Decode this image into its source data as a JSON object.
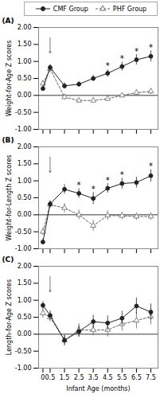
{
  "chart_data": [
    {
      "type": "line",
      "title": "(A)",
      "ylabel": "Weight-for-Age Z scores",
      "x": [
        0,
        0.5,
        1.5,
        2.5,
        3.5,
        4.5,
        5.5,
        6.5,
        7.5
      ],
      "series": [
        {
          "name": "CMF Group",
          "color": "#222222",
          "marker": "circle",
          "line_style": "solid",
          "values": [
            0.2,
            0.82,
            0.28,
            0.33,
            0.5,
            0.65,
            0.85,
            1.05,
            1.15
          ],
          "errors": [
            0.07,
            0.09,
            0.09,
            0.08,
            0.09,
            0.11,
            0.13,
            0.15,
            0.16
          ]
        },
        {
          "name": "PHF Group",
          "color": "#666666",
          "marker": "triangle_open",
          "line_style": "dashed",
          "values": [
            0.35,
            0.78,
            -0.05,
            -0.15,
            -0.15,
            -0.1,
            0.0,
            0.08,
            0.12
          ],
          "errors": [
            0.09,
            0.11,
            0.09,
            0.07,
            0.07,
            0.07,
            0.07,
            0.09,
            0.09
          ]
        }
      ],
      "xlim": [
        -0.3,
        8.0
      ],
      "xticks": [
        0,
        0.5,
        1.5,
        2.5,
        3.5,
        4.5,
        5.5,
        6.5,
        7.5
      ],
      "ylim": [
        -1.0,
        2.0
      ],
      "yticks": [
        {
          "value": -1.0,
          "label": "-1.00"
        },
        {
          "value": -0.5,
          "label": "-0.50"
        },
        {
          "value": 0.0,
          "label": "0.00"
        },
        {
          "value": 0.5,
          "label": "0.50"
        },
        {
          "value": 1.0,
          "label": "1.00"
        },
        {
          "value": 1.5,
          "label": "1.50"
        },
        {
          "value": 2.0,
          "label": "2.00"
        }
      ],
      "hlines": [
        0
      ],
      "arrow_x": 0.5,
      "annotations": [
        {
          "text": "*",
          "x": 4.5,
          "series": "CMF Group"
        },
        {
          "text": "*",
          "x": 5.5,
          "series": "CMF Group"
        },
        {
          "text": "*",
          "x": 6.5,
          "series": "CMF Group"
        },
        {
          "text": "*",
          "x": 7.5,
          "series": "CMF Group"
        }
      ],
      "tick_labels": "y",
      "grid": false,
      "legend": "top"
    },
    {
      "type": "line",
      "title": "(B)",
      "ylabel": "Weight-for-Length Z scores",
      "x": [
        0,
        0.5,
        1.5,
        2.5,
        3.5,
        4.5,
        5.5,
        6.5,
        7.5
      ],
      "series": [
        {
          "name": "CMF Group",
          "color": "#222222",
          "marker": "circle",
          "line_style": "solid",
          "values": [
            -0.8,
            0.32,
            0.75,
            0.63,
            0.48,
            0.78,
            0.92,
            0.95,
            1.15
          ],
          "errors": [
            0.09,
            0.09,
            0.14,
            0.14,
            0.18,
            0.14,
            0.16,
            0.16,
            0.18
          ]
        },
        {
          "name": "PHF Group",
          "color": "#666666",
          "marker": "triangle_open",
          "line_style": "dashed",
          "values": [
            -0.5,
            0.3,
            0.2,
            0.0,
            -0.32,
            -0.02,
            -0.03,
            -0.05,
            -0.05
          ],
          "errors": [
            0.11,
            0.11,
            0.14,
            0.14,
            0.16,
            0.14,
            0.11,
            0.11,
            0.11
          ]
        }
      ],
      "xlim": [
        -0.3,
        8.0
      ],
      "xticks": [
        0,
        0.5,
        1.5,
        2.5,
        3.5,
        4.5,
        5.5,
        6.5,
        7.5
      ],
      "ylim": [
        -1.0,
        2.0
      ],
      "yticks": [
        {
          "value": -1.0,
          "label": "-1.00"
        },
        {
          "value": -0.5,
          "label": "-0.50"
        },
        {
          "value": 0.0,
          "label": "0.00"
        },
        {
          "value": 0.5,
          "label": "0.50"
        },
        {
          "value": 1.0,
          "label": "1.00"
        },
        {
          "value": 1.5,
          "label": "1.50"
        },
        {
          "value": 2.0,
          "label": "2.00"
        }
      ],
      "hlines": [
        0
      ],
      "arrow_x": 0.5,
      "annotations": [
        {
          "text": "*",
          "x": 2.5,
          "series": "CMF Group"
        },
        {
          "text": "*",
          "x": 3.5,
          "series": "CMF Group"
        },
        {
          "text": "*",
          "x": 4.5,
          "series": "CMF Group"
        },
        {
          "text": "*",
          "x": 5.5,
          "series": "CMF Group"
        },
        {
          "text": "*",
          "x": 7.5,
          "series": "CMF Group"
        }
      ],
      "tick_labels": "y",
      "grid": false
    },
    {
      "type": "line",
      "title": "(C)",
      "ylabel": "Length-for-Age Z scores",
      "xlabel": "Infant Age (months)",
      "x": [
        0,
        0.5,
        1.5,
        2.5,
        3.5,
        4.5,
        5.5,
        6.5,
        7.5
      ],
      "series": [
        {
          "name": "CMF Group",
          "color": "#222222",
          "marker": "circle",
          "line_style": "solid",
          "values": [
            0.85,
            0.55,
            -0.18,
            0.08,
            0.37,
            0.33,
            0.47,
            0.83,
            0.65
          ],
          "errors": [
            0.11,
            0.14,
            0.14,
            0.17,
            0.19,
            0.21,
            0.21,
            0.24,
            0.24
          ]
        },
        {
          "name": "PHF Group",
          "color": "#666666",
          "marker": "triangle_open",
          "line_style": "dashed",
          "values": [
            0.62,
            0.5,
            -0.18,
            0.12,
            0.12,
            0.13,
            0.3,
            0.4,
            0.52
          ],
          "errors": [
            0.14,
            0.14,
            0.17,
            0.19,
            0.17,
            0.21,
            0.21,
            0.24,
            0.24
          ]
        }
      ],
      "xlim": [
        -0.3,
        8.0
      ],
      "xticks": [
        0,
        0.5,
        1.5,
        2.5,
        3.5,
        4.5,
        5.5,
        6.5,
        7.5
      ],
      "ylim": [
        -1.0,
        2.0
      ],
      "yticks": [
        {
          "value": -1.0,
          "label": "-1.00"
        },
        {
          "value": -0.5,
          "label": "-0.50"
        },
        {
          "value": 0.0,
          "label": "0.00"
        },
        {
          "value": 0.5,
          "label": "0.50"
        },
        {
          "value": 1.0,
          "label": "1.00"
        },
        {
          "value": 1.5,
          "label": "1.50"
        },
        {
          "value": 2.0,
          "label": "2.00"
        }
      ],
      "hlines": [
        0
      ],
      "arrow_x": 0.5,
      "annotations": [],
      "grid": false
    }
  ]
}
